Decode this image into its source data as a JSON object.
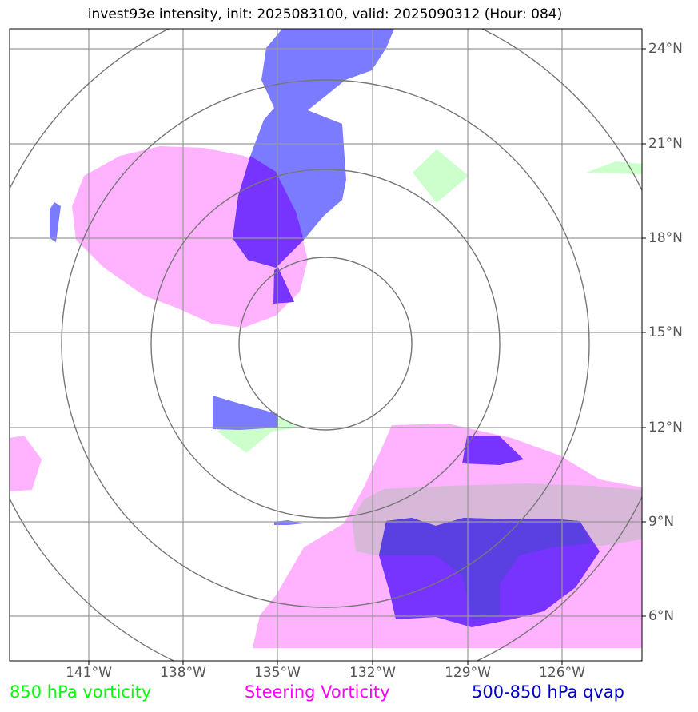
{
  "title": "invest93e intensity, init: 2025083100, valid: 2025090312 (Hour: 084)",
  "lon_labels": [
    "141°W",
    "138°W",
    "135°W",
    "132°W",
    "129°W",
    "126°W"
  ],
  "lat_labels": [
    "24°N",
    "21°N",
    "18°N",
    "15°N",
    "12°N",
    "9°N",
    "6°N"
  ],
  "legend": [
    {
      "label": "850 hPa vorticity",
      "color": "#00ff00"
    },
    {
      "label": "Steering Vorticity",
      "color": "#ff00ff"
    },
    {
      "label": "500-850 hPa qvap",
      "color": "#0000cc"
    }
  ],
  "colors": {
    "vorticity_850": "#ccffcc",
    "steering": "#ffaaff",
    "qvap": "#6666ff",
    "overlap": "#7a33ff",
    "grid": "#999999",
    "rings": "#777777"
  }
}
